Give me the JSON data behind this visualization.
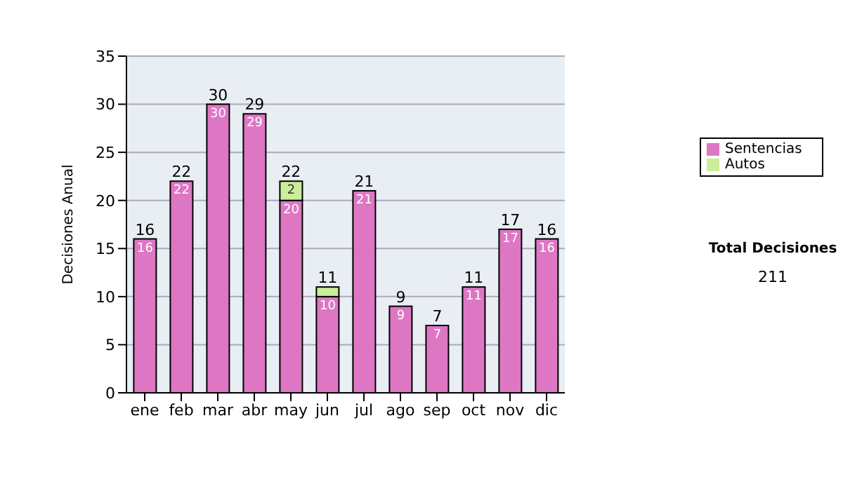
{
  "chart_data": {
    "type": "bar",
    "stacked": true,
    "ylabel": "Decisiones Anual",
    "categories": [
      "ene",
      "feb",
      "mar",
      "abr",
      "may",
      "jun",
      "jul",
      "ago",
      "sep",
      "oct",
      "nov",
      "dic"
    ],
    "series": [
      {
        "name": "Sentencias",
        "color": "#dd77c4",
        "values": [
          16,
          22,
          30,
          29,
          20,
          10,
          21,
          9,
          7,
          11,
          17,
          16
        ],
        "value_labels": [
          "16",
          "22",
          "30",
          "29",
          "20",
          "10",
          "21",
          "9",
          "7",
          "11",
          "17",
          "16"
        ]
      },
      {
        "name": "Autos",
        "color": "#ccee99",
        "values": [
          0,
          0,
          0,
          0,
          2,
          1,
          0,
          0,
          0,
          0,
          0,
          0
        ],
        "value_labels": [
          null,
          null,
          null,
          null,
          "2",
          null,
          null,
          null,
          null,
          null,
          null,
          null
        ]
      }
    ],
    "totals": [
      "16",
      "22",
      "30",
      "29",
      "22",
      "11",
      "21",
      "9",
      "7",
      "11",
      "17",
      "16"
    ],
    "ylim": [
      0,
      35
    ],
    "yticks": [
      0,
      5,
      10,
      15,
      20,
      25,
      30,
      35
    ],
    "grid": "y",
    "legend": "right",
    "annotations": [
      "Total Decisiones",
      "211"
    ]
  }
}
